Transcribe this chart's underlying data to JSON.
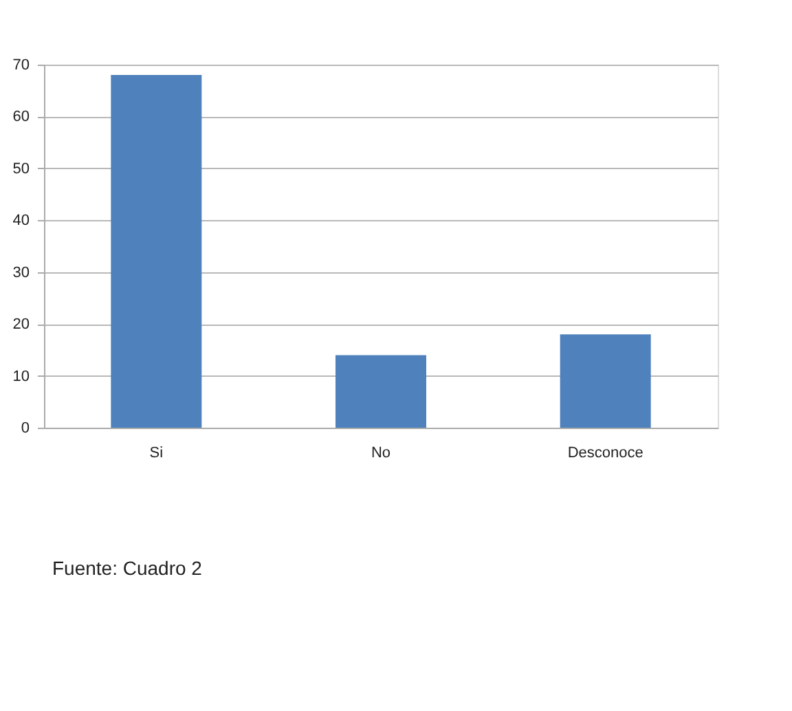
{
  "chart_data": {
    "type": "bar",
    "categories": [
      "Si",
      "No",
      "Desconoce"
    ],
    "values": [
      68,
      14,
      18
    ],
    "color": "#4f81bd",
    "ylim": [
      0,
      70
    ],
    "yticks": [
      0,
      10,
      20,
      30,
      40,
      50,
      60,
      70
    ],
    "grid": "y",
    "annotations": [
      "Fuente: Cuadro 2"
    ]
  }
}
